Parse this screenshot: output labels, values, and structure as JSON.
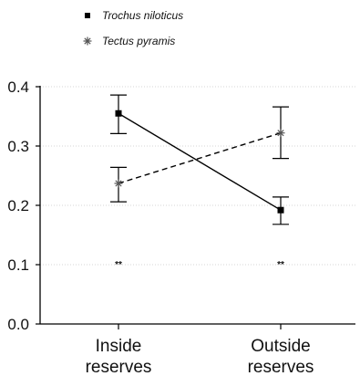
{
  "chart_data": {
    "type": "line",
    "categories": [
      "Inside\nreserves",
      "Outside\nreserves"
    ],
    "ylim": [
      0.0,
      0.4
    ],
    "yticks": [
      0.0,
      0.1,
      0.2,
      0.3,
      0.4
    ],
    "ytick_labels": [
      "0.0",
      "0.1",
      "0.2",
      "0.3",
      "0.4"
    ],
    "grid": true,
    "legend_position": "top-left",
    "series": [
      {
        "name": "Trochus niloticus",
        "marker": "square",
        "line_style": "solid",
        "color": "#000000",
        "values": [
          0.355,
          0.192
        ],
        "error_low": [
          0.321,
          0.168
        ],
        "error_high": [
          0.386,
          0.214
        ]
      },
      {
        "name": "Tectus pyramis",
        "marker": "star",
        "line_style": "dashed",
        "color": "#000000",
        "values": [
          0.237,
          0.322
        ],
        "error_low": [
          0.206,
          0.279
        ],
        "error_high": [
          0.264,
          0.366
        ]
      }
    ],
    "annotations": [
      {
        "category_index": 0,
        "y": 0.1,
        "text": "**"
      },
      {
        "category_index": 1,
        "y": 0.1,
        "text": "**"
      }
    ]
  }
}
